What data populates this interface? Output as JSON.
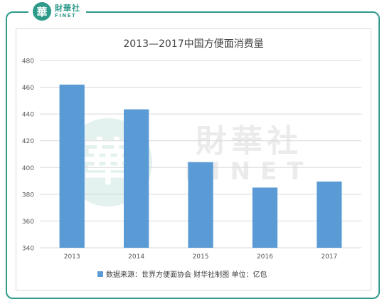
{
  "brand": {
    "seal_char": "華",
    "name_cn": "財華社",
    "name_en": "FINET"
  },
  "watermark": {
    "cn": "財華社",
    "en": "FINET"
  },
  "chart_data": {
    "type": "bar",
    "title": "2013—2017中国方便面消费量",
    "categories": [
      "2013",
      "2014",
      "2015",
      "2016",
      "2017"
    ],
    "series": [
      {
        "name": "数据来源：世界方便面协会 财华社制图 单位：亿包",
        "values": [
          462,
          443.5,
          404,
          385,
          389.5
        ]
      }
    ],
    "ylim": [
      340,
      480
    ],
    "yticks": [
      340,
      360,
      380,
      400,
      420,
      440,
      460,
      480
    ],
    "xlabel": "",
    "ylabel": "",
    "grid": true,
    "legend_position": "bottom",
    "bar_color": "#5b9bd5"
  }
}
